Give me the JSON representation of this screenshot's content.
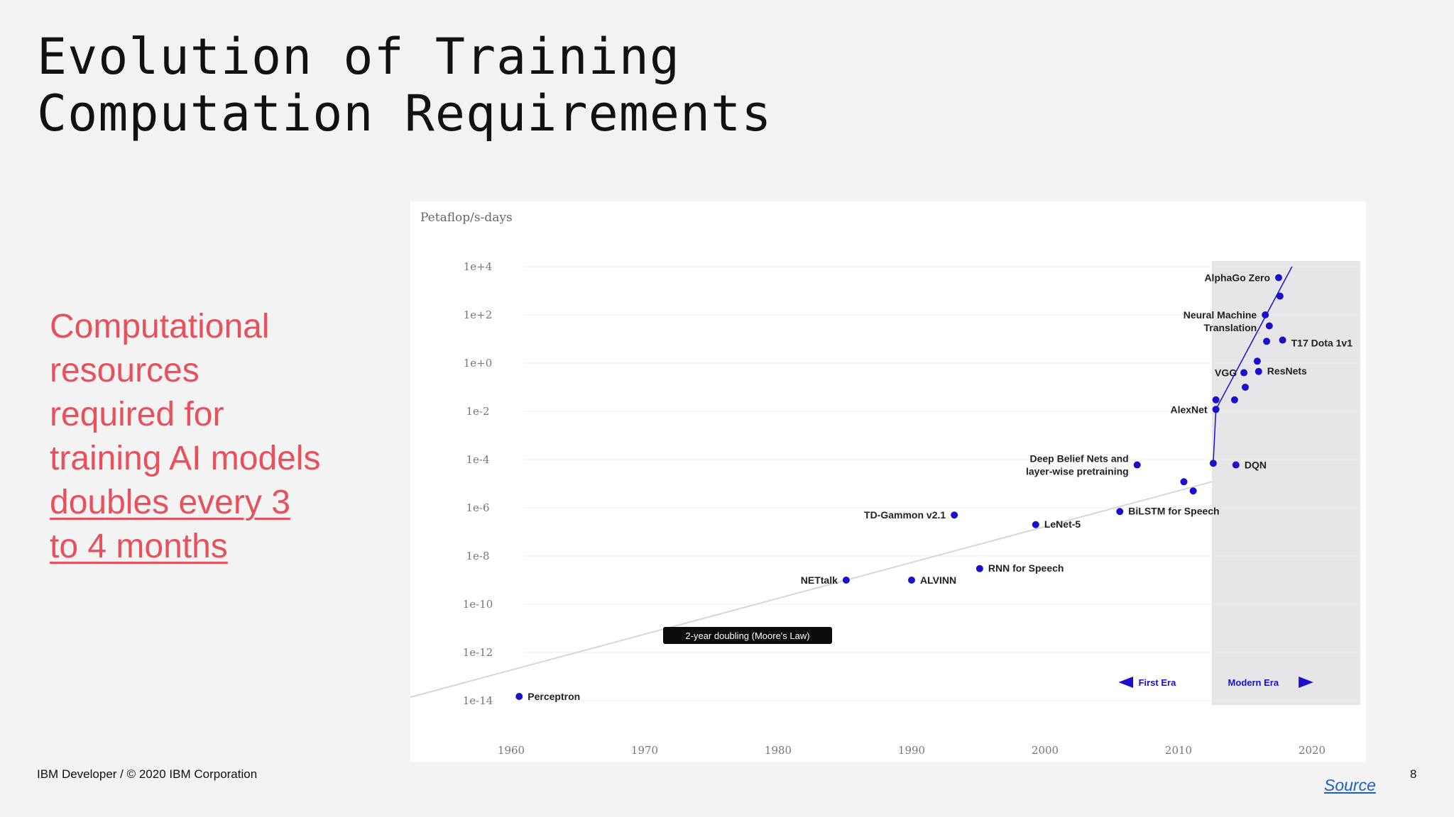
{
  "slide": {
    "title_line1": "Evolution of Training",
    "title_line2": "Computation Requirements",
    "callout_lines": [
      "Computational",
      "resources",
      "required for",
      "training AI models"
    ],
    "callout_link_lines": [
      "doubles every 3",
      "to 4 months"
    ],
    "footer": "IBM Developer / © 2020 IBM Corporation",
    "page_number": "8",
    "source_label": "Source"
  },
  "colors": {
    "accent": "#e8505b",
    "point": "#1a10c8",
    "modern_era_shade": "#e6e6e8",
    "link": "#1a5fd0"
  },
  "chart_data": {
    "type": "scatter",
    "ylabel": "Petaflop/s-days",
    "y_scale": "log",
    "y_ticks": [
      {
        "label": "1e+4",
        "exp": 4
      },
      {
        "label": "1e+2",
        "exp": 2
      },
      {
        "label": "1e+0",
        "exp": 0
      },
      {
        "label": "1e-2",
        "exp": -2
      },
      {
        "label": "1e-4",
        "exp": -4
      },
      {
        "label": "1e-6",
        "exp": -6
      },
      {
        "label": "1e-8",
        "exp": -8
      },
      {
        "label": "1e-10",
        "exp": -10
      },
      {
        "label": "1e-12",
        "exp": -12
      },
      {
        "label": "1e-14",
        "exp": -14
      }
    ],
    "x_ticks": [
      "1960",
      "1970",
      "1980",
      "1990",
      "2000",
      "2010",
      "2020"
    ],
    "xlim": [
      1960,
      2020
    ],
    "grid": true,
    "points": [
      {
        "name": "Perceptron",
        "x": 1960.6,
        "y": 1.5e-14
      },
      {
        "name": "NETtalk",
        "x": 1985.1,
        "y": 1e-09
      },
      {
        "name": "ALVINN",
        "x": 1990.0,
        "y": 1e-09
      },
      {
        "name": "TD-Gammon v2.1",
        "x": 1993.2,
        "y": 5e-07
      },
      {
        "name": "RNN for Speech",
        "x": 1995.1,
        "y": 3e-09
      },
      {
        "name": "LeNet-5",
        "x": 1999.3,
        "y": 2e-07
      },
      {
        "name": "BiLSTM for Speech",
        "x": 2005.6,
        "y": 7e-07
      },
      {
        "name": "Deep Belief Nets and layer-wise pretraining",
        "x": 2006.9,
        "y": 6e-05
      },
      {
        "name": "",
        "x": 2010.4,
        "y": 1.2e-05
      },
      {
        "name": "",
        "x": 2011.1,
        "y": 5e-06
      },
      {
        "name": "",
        "x": 2012.6,
        "y": 7e-05
      },
      {
        "name": "DQN",
        "x": 2014.3,
        "y": 6e-05
      },
      {
        "name": "AlexNet",
        "x": 2012.8,
        "y": 0.012
      },
      {
        "name": "",
        "x": 2012.8,
        "y": 0.03
      },
      {
        "name": "",
        "x": 2014.2,
        "y": 0.03
      },
      {
        "name": "",
        "x": 2015.0,
        "y": 0.1
      },
      {
        "name": "VGG",
        "x": 2014.9,
        "y": 0.4
      },
      {
        "name": "ResNets",
        "x": 2016.0,
        "y": 0.45
      },
      {
        "name": "",
        "x": 2015.9,
        "y": 1.2
      },
      {
        "name": "",
        "x": 2016.6,
        "y": 8
      },
      {
        "name": "T17 Dota 1v1",
        "x": 2017.8,
        "y": 9
      },
      {
        "name": "",
        "x": 2016.8,
        "y": 35
      },
      {
        "name": "Neural Machine Translation",
        "x": 2016.5,
        "y": 100
      },
      {
        "name": "",
        "x": 2017.6,
        "y": 600
      },
      {
        "name": "AlphaGo Zero",
        "x": 2017.5,
        "y": 3500
      }
    ],
    "annotations": {
      "moores_law": "2-year doubling (Moore's Law)",
      "first_era": "First Era",
      "modern_era": "Modern Era"
    }
  }
}
